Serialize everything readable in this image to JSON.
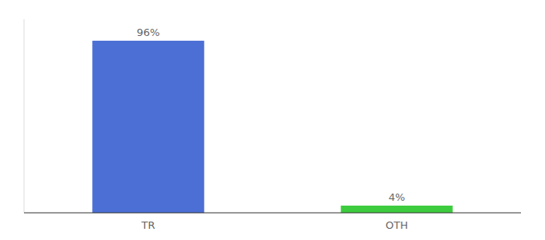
{
  "chart_data": {
    "type": "bar",
    "categories": [
      "TR",
      "OTH"
    ],
    "values": [
      96,
      4
    ],
    "colors": [
      "#4b6fd4",
      "#3dcc3d"
    ],
    "value_labels": [
      "96%",
      "4%"
    ],
    "data_labels": true,
    "ylim": [
      0,
      108
    ],
    "tick_labels": "x"
  }
}
